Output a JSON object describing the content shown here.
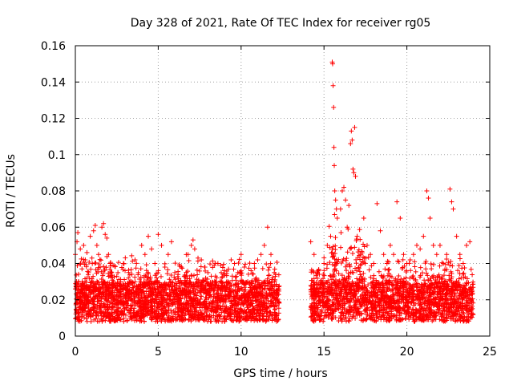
{
  "chart_data": {
    "type": "scatter",
    "title": "Day 328 of 2021, Rate Of TEC Index for receiver rg05",
    "xlabel": "GPS time / hours",
    "ylabel": "ROTI / TECUs",
    "xlim": [
      0,
      25
    ],
    "ylim": [
      0,
      0.16
    ],
    "x_ticks": [
      0,
      5,
      10,
      15,
      20,
      25
    ],
    "y_ticks": [
      0,
      0.02,
      0.04,
      0.06,
      0.08,
      0.1,
      0.12,
      0.14,
      0.16
    ],
    "x_tick_labels": [
      "0",
      "5",
      "10",
      "15",
      "20",
      "25"
    ],
    "y_tick_labels": [
      "0",
      "0.02",
      "0.04",
      "0.06",
      "0.08",
      "0.1",
      "0.12",
      "0.14",
      "0.16"
    ],
    "grid": true,
    "marker": "+",
    "color": "#ff0000",
    "series": [
      {
        "points": [
          [
            0.0,
            0.045
          ],
          [
            0.1,
            0.052
          ],
          [
            0.15,
            0.057
          ],
          [
            0.2,
            0.03
          ],
          [
            0.3,
            0.048
          ],
          [
            0.4,
            0.037
          ],
          [
            0.5,
            0.05
          ],
          [
            0.6,
            0.042
          ],
          [
            0.7,
            0.046
          ],
          [
            0.8,
            0.035
          ],
          [
            0.9,
            0.055
          ],
          [
            1.0,
            0.043
          ],
          [
            1.1,
            0.058
          ],
          [
            1.2,
            0.061
          ],
          [
            1.3,
            0.05
          ],
          [
            1.4,
            0.045
          ],
          [
            1.5,
            0.038
          ],
          [
            1.6,
            0.06
          ],
          [
            1.7,
            0.062
          ],
          [
            1.8,
            0.056
          ],
          [
            1.9,
            0.054
          ],
          [
            2.0,
            0.045
          ],
          [
            2.1,
            0.04
          ],
          [
            2.2,
            0.035
          ],
          [
            2.3,
            0.03
          ],
          [
            2.5,
            0.033
          ],
          [
            2.7,
            0.028
          ],
          [
            2.9,
            0.04
          ],
          [
            3.0,
            0.036
          ],
          [
            3.2,
            0.032
          ],
          [
            3.4,
            0.03
          ],
          [
            3.6,
            0.042
          ],
          [
            3.8,
            0.035
          ],
          [
            4.0,
            0.05
          ],
          [
            4.2,
            0.045
          ],
          [
            4.4,
            0.055
          ],
          [
            4.6,
            0.048
          ],
          [
            4.8,
            0.04
          ],
          [
            5.0,
            0.056
          ],
          [
            5.2,
            0.05
          ],
          [
            5.4,
            0.038
          ],
          [
            5.6,
            0.045
          ],
          [
            5.8,
            0.052
          ],
          [
            6.0,
            0.035
          ],
          [
            6.2,
            0.03
          ],
          [
            6.4,
            0.038
          ],
          [
            6.6,
            0.033
          ],
          [
            6.8,
            0.045
          ],
          [
            7.0,
            0.05
          ],
          [
            7.1,
            0.053
          ],
          [
            7.2,
            0.048
          ],
          [
            7.4,
            0.043
          ],
          [
            7.6,
            0.042
          ],
          [
            7.8,
            0.038
          ],
          [
            8.0,
            0.035
          ],
          [
            8.2,
            0.033
          ],
          [
            8.4,
            0.03
          ],
          [
            8.6,
            0.04
          ],
          [
            8.8,
            0.035
          ],
          [
            9.0,
            0.036
          ],
          [
            9.2,
            0.03
          ],
          [
            9.4,
            0.042
          ],
          [
            9.6,
            0.04
          ],
          [
            9.8,
            0.035
          ],
          [
            10.0,
            0.045
          ],
          [
            10.2,
            0.038
          ],
          [
            10.4,
            0.03
          ],
          [
            10.6,
            0.036
          ],
          [
            10.8,
            0.04
          ],
          [
            11.0,
            0.042
          ],
          [
            11.2,
            0.045
          ],
          [
            11.4,
            0.05
          ],
          [
            11.6,
            0.06
          ],
          [
            11.8,
            0.045
          ],
          [
            12.0,
            0.035
          ],
          [
            12.2,
            0.025
          ],
          [
            14.2,
            0.052
          ],
          [
            14.4,
            0.045
          ],
          [
            14.6,
            0.035
          ],
          [
            14.8,
            0.03
          ],
          [
            15.0,
            0.04
          ],
          [
            15.2,
            0.05
          ],
          [
            15.4,
            0.055
          ],
          [
            15.5,
            0.151
          ],
          [
            15.52,
            0.15
          ],
          [
            15.55,
            0.138
          ],
          [
            15.58,
            0.126
          ],
          [
            15.6,
            0.104
          ],
          [
            15.62,
            0.094
          ],
          [
            15.65,
            0.08
          ],
          [
            15.7,
            0.075
          ],
          [
            15.75,
            0.07
          ],
          [
            15.8,
            0.065
          ],
          [
            16.0,
            0.07
          ],
          [
            16.1,
            0.08
          ],
          [
            16.2,
            0.082
          ],
          [
            16.3,
            0.075
          ],
          [
            16.4,
            0.06
          ],
          [
            16.5,
            0.072
          ],
          [
            16.6,
            0.106
          ],
          [
            16.65,
            0.113
          ],
          [
            16.7,
            0.108
          ],
          [
            16.75,
            0.092
          ],
          [
            16.8,
            0.09
          ],
          [
            16.85,
            0.115
          ],
          [
            16.9,
            0.088
          ],
          [
            17.0,
            0.055
          ],
          [
            17.2,
            0.045
          ],
          [
            17.4,
            0.065
          ],
          [
            17.6,
            0.05
          ],
          [
            17.8,
            0.045
          ],
          [
            18.0,
            0.04
          ],
          [
            18.2,
            0.073
          ],
          [
            18.4,
            0.058
          ],
          [
            18.6,
            0.045
          ],
          [
            18.8,
            0.04
          ],
          [
            19.0,
            0.05
          ],
          [
            19.2,
            0.045
          ],
          [
            19.4,
            0.074
          ],
          [
            19.6,
            0.065
          ],
          [
            19.8,
            0.045
          ],
          [
            20.0,
            0.04
          ],
          [
            20.2,
            0.042
          ],
          [
            20.4,
            0.045
          ],
          [
            20.6,
            0.05
          ],
          [
            20.8,
            0.048
          ],
          [
            21.0,
            0.055
          ],
          [
            21.2,
            0.08
          ],
          [
            21.3,
            0.076
          ],
          [
            21.4,
            0.065
          ],
          [
            21.6,
            0.05
          ],
          [
            21.8,
            0.045
          ],
          [
            22.0,
            0.05
          ],
          [
            22.2,
            0.04
          ],
          [
            22.4,
            0.045
          ],
          [
            22.6,
            0.081
          ],
          [
            22.7,
            0.074
          ],
          [
            22.8,
            0.07
          ],
          [
            23.0,
            0.055
          ],
          [
            23.2,
            0.045
          ],
          [
            23.4,
            0.04
          ],
          [
            23.6,
            0.05
          ],
          [
            23.8,
            0.052
          ]
        ]
      }
    ]
  }
}
